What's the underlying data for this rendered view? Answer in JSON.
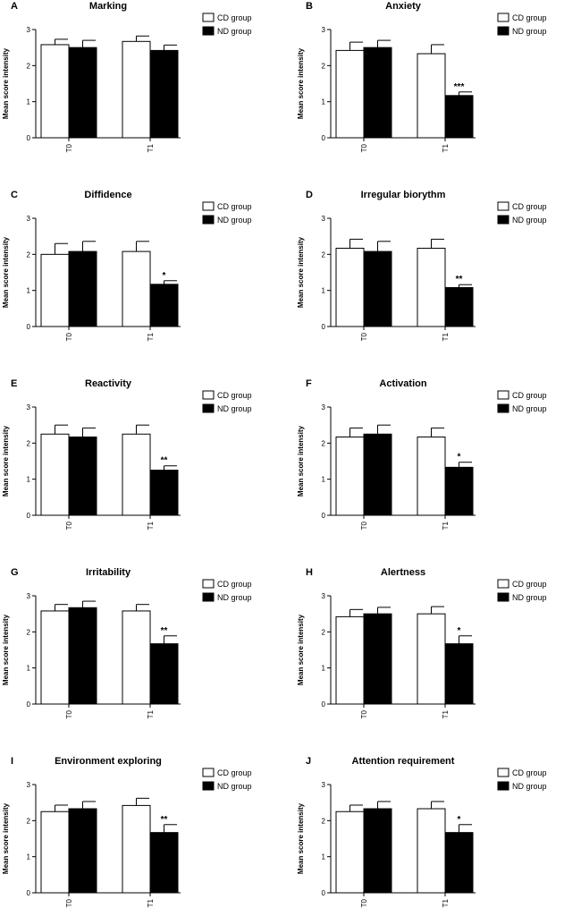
{
  "chart_data": [
    {
      "letter": "A",
      "type": "bar",
      "title": "Marking",
      "ylabel": "Mean score intensity",
      "ylim": [
        0,
        3
      ],
      "yticks": [
        0,
        1,
        2,
        3
      ],
      "categories": [
        "T0",
        "T1"
      ],
      "series": [
        {
          "name": "CD group",
          "values": [
            2.58,
            2.67
          ],
          "errors": [
            0.15,
            0.15
          ]
        },
        {
          "name": "ND group",
          "values": [
            2.5,
            2.42
          ],
          "errors": [
            0.2,
            0.15
          ]
        }
      ],
      "annotations": [
        "",
        ""
      ]
    },
    {
      "letter": "B",
      "type": "bar",
      "title": "Anxiety",
      "ylabel": "Mean score intensity",
      "ylim": [
        0,
        3
      ],
      "yticks": [
        0,
        1,
        2,
        3
      ],
      "categories": [
        "T0",
        "T1"
      ],
      "series": [
        {
          "name": "CD group",
          "values": [
            2.42,
            2.33
          ],
          "errors": [
            0.23,
            0.25
          ]
        },
        {
          "name": "ND group",
          "values": [
            2.5,
            1.17
          ],
          "errors": [
            0.2,
            0.1
          ]
        }
      ],
      "annotations": [
        "",
        "***"
      ]
    },
    {
      "letter": "C",
      "type": "bar",
      "title": "Diffidence",
      "ylabel": "Mean score intensity",
      "ylim": [
        0,
        3
      ],
      "yticks": [
        0,
        1,
        2,
        3
      ],
      "categories": [
        "T0",
        "T1"
      ],
      "series": [
        {
          "name": "CD group",
          "values": [
            2.0,
            2.08
          ],
          "errors": [
            0.3,
            0.28
          ]
        },
        {
          "name": "ND group",
          "values": [
            2.08,
            1.17
          ],
          "errors": [
            0.28,
            0.1
          ]
        }
      ],
      "annotations": [
        "",
        "*"
      ]
    },
    {
      "letter": "D",
      "type": "bar",
      "title": "Irregular biorythm",
      "ylabel": "Mean score intensity",
      "ylim": [
        0,
        3
      ],
      "yticks": [
        0,
        1,
        2,
        3
      ],
      "categories": [
        "T0",
        "T1"
      ],
      "series": [
        {
          "name": "CD group",
          "values": [
            2.17,
            2.17
          ],
          "errors": [
            0.25,
            0.25
          ]
        },
        {
          "name": "ND group",
          "values": [
            2.08,
            1.08
          ],
          "errors": [
            0.28,
            0.08
          ]
        }
      ],
      "annotations": [
        "",
        "**"
      ]
    },
    {
      "letter": "E",
      "type": "bar",
      "title": "Reactivity",
      "ylabel": "Mean score intensity",
      "ylim": [
        0,
        3
      ],
      "yticks": [
        0,
        1,
        2,
        3
      ],
      "categories": [
        "T0",
        "T1"
      ],
      "series": [
        {
          "name": "CD group",
          "values": [
            2.25,
            2.25
          ],
          "errors": [
            0.25,
            0.25
          ]
        },
        {
          "name": "ND group",
          "values": [
            2.17,
            1.25
          ],
          "errors": [
            0.25,
            0.12
          ]
        }
      ],
      "annotations": [
        "",
        "**"
      ]
    },
    {
      "letter": "F",
      "type": "bar",
      "title": "Activation",
      "ylabel": "Mean score intensity",
      "ylim": [
        0,
        3
      ],
      "yticks": [
        0,
        1,
        2,
        3
      ],
      "categories": [
        "T0",
        "T1"
      ],
      "series": [
        {
          "name": "CD group",
          "values": [
            2.17,
            2.17
          ],
          "errors": [
            0.25,
            0.25
          ]
        },
        {
          "name": "ND group",
          "values": [
            2.25,
            1.33
          ],
          "errors": [
            0.25,
            0.14
          ]
        }
      ],
      "annotations": [
        "",
        "*"
      ]
    },
    {
      "letter": "G",
      "type": "bar",
      "title": "Irritability",
      "ylabel": "Mean score intensity",
      "ylim": [
        0,
        3
      ],
      "yticks": [
        0,
        1,
        2,
        3
      ],
      "categories": [
        "T0",
        "T1"
      ],
      "series": [
        {
          "name": "CD group",
          "values": [
            2.58,
            2.58
          ],
          "errors": [
            0.18,
            0.18
          ]
        },
        {
          "name": "ND group",
          "values": [
            2.67,
            1.67
          ],
          "errors": [
            0.18,
            0.22
          ]
        }
      ],
      "annotations": [
        "",
        "**"
      ]
    },
    {
      "letter": "H",
      "type": "bar",
      "title": "Alertness",
      "ylabel": "Mean score intensity",
      "ylim": [
        0,
        3
      ],
      "yticks": [
        0,
        1,
        2,
        3
      ],
      "categories": [
        "T0",
        "T1"
      ],
      "series": [
        {
          "name": "CD group",
          "values": [
            2.42,
            2.5
          ],
          "errors": [
            0.2,
            0.2
          ]
        },
        {
          "name": "ND group",
          "values": [
            2.5,
            1.67
          ],
          "errors": [
            0.18,
            0.22
          ]
        }
      ],
      "annotations": [
        "",
        "*"
      ]
    },
    {
      "letter": "I",
      "type": "bar",
      "title": "Environment exploring",
      "ylabel": "Mean score intensity",
      "ylim": [
        0,
        3
      ],
      "yticks": [
        0,
        1,
        2,
        3
      ],
      "categories": [
        "T0",
        "T1"
      ],
      "series": [
        {
          "name": "CD group",
          "values": [
            2.25,
            2.42
          ],
          "errors": [
            0.18,
            0.2
          ]
        },
        {
          "name": "ND group",
          "values": [
            2.33,
            1.67
          ],
          "errors": [
            0.2,
            0.22
          ]
        }
      ],
      "annotations": [
        "",
        "**"
      ]
    },
    {
      "letter": "J",
      "type": "bar",
      "title": "Attention requirement",
      "ylabel": "Mean score intensity",
      "ylim": [
        0,
        3
      ],
      "yticks": [
        0,
        1,
        2,
        3
      ],
      "categories": [
        "T0",
        "T1"
      ],
      "series": [
        {
          "name": "CD group",
          "values": [
            2.25,
            2.33
          ],
          "errors": [
            0.18,
            0.2
          ]
        },
        {
          "name": "ND group",
          "values": [
            2.33,
            1.67
          ],
          "errors": [
            0.2,
            0.22
          ]
        }
      ],
      "annotations": [
        "",
        "*"
      ]
    }
  ],
  "colors": {
    "cd_fill": "#ffffff",
    "nd_fill": "#000000",
    "stroke": "#000000"
  }
}
